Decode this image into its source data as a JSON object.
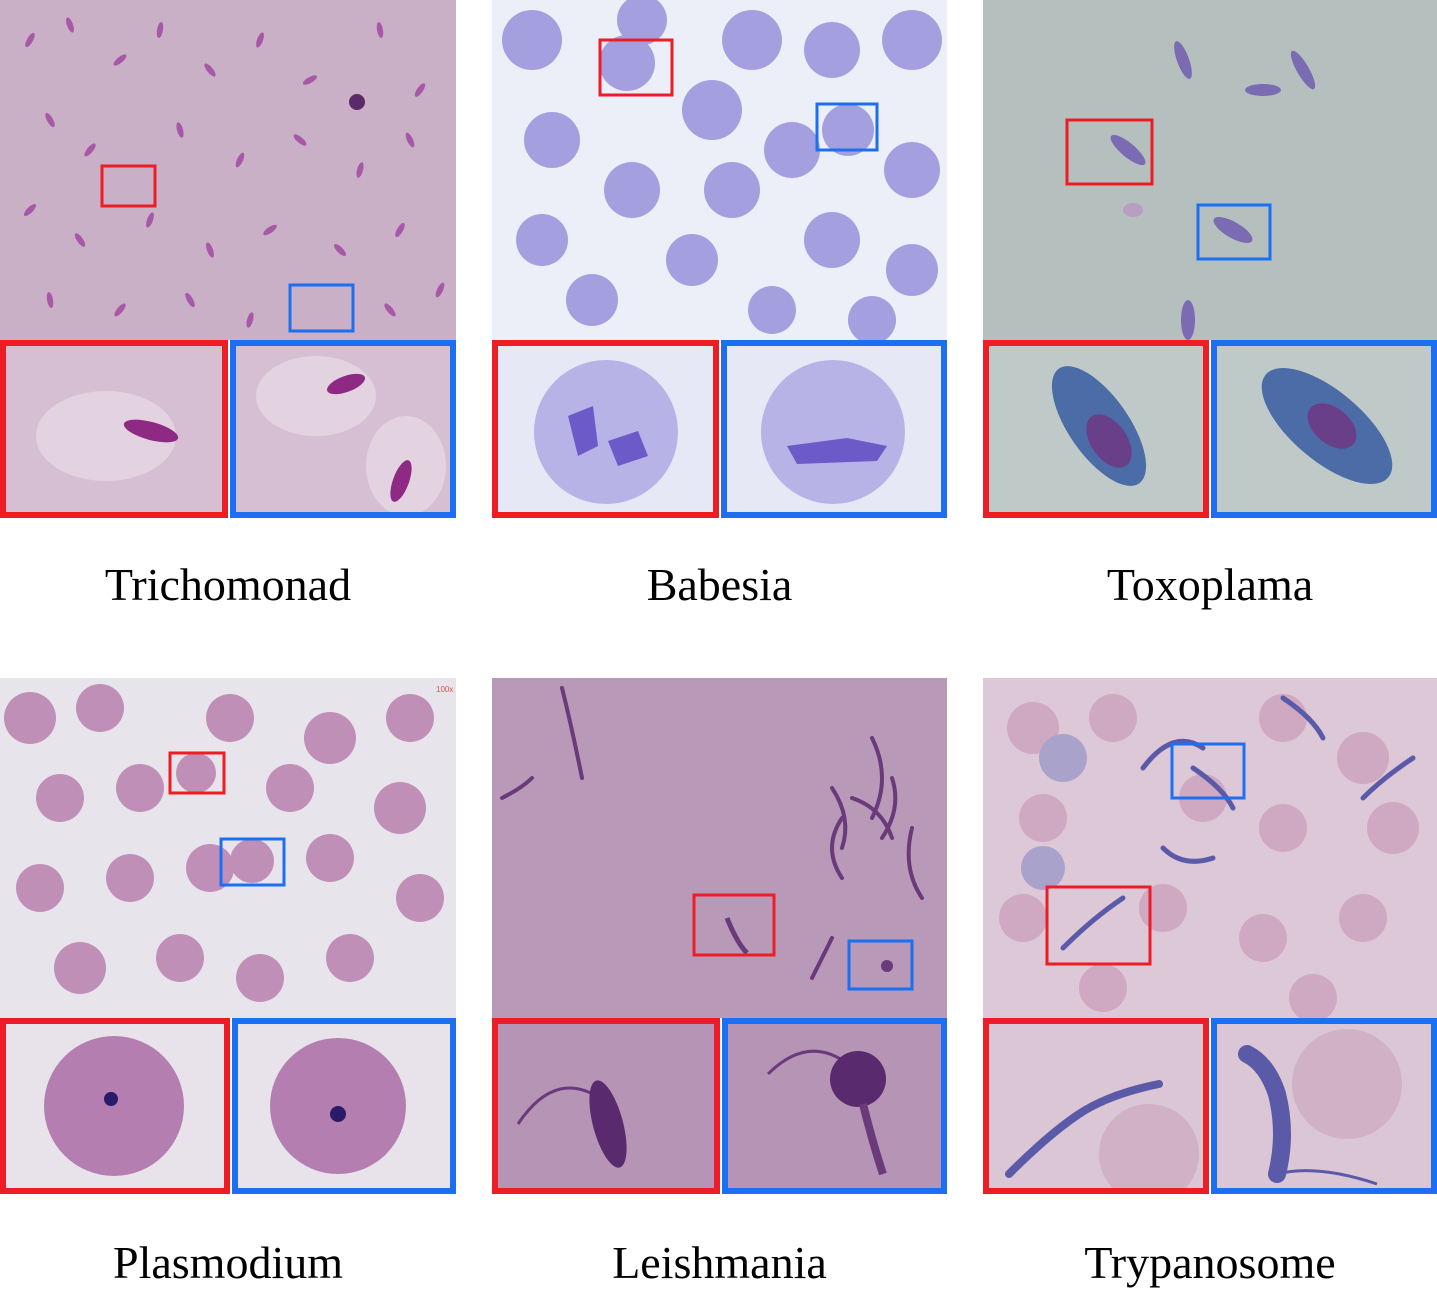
{
  "panels": [
    {
      "label": "Trichomonad"
    },
    {
      "label": "Babesia"
    },
    {
      "label": "Toxoplama"
    },
    {
      "label": "Plasmodium"
    },
    {
      "label": "Leishmania"
    },
    {
      "label": "Trypanosome"
    }
  ],
  "watermark": "100x",
  "colors": {
    "red_box": "#ee1c24",
    "blue_box": "#1d6ff2"
  }
}
